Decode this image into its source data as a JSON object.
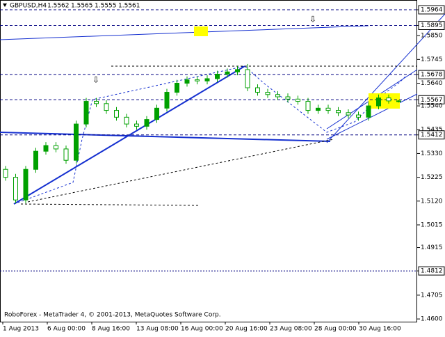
{
  "chart_data": {
    "type": "candlestick",
    "symbol": "GBPUSD,H4",
    "footer": "RoboForex - MetaTrader 4, © 2001-2013, MetaQuotes Software Corp.",
    "x_labels": [
      "1 Aug 2013",
      "6 Aug 00:00",
      "8 Aug 16:00",
      "13 Aug 08:00",
      "16 Aug 00:00",
      "20 Aug 16:00",
      "23 Aug 08:00",
      "28 Aug 00:00",
      "30 Aug 16:00"
    ],
    "up_color": "#00a000",
    "down_color": "#ffffff",
    "level_color": "#000080",
    "ylim": [
      1.4588,
      1.6004
    ],
    "yticks": [
      {
        "value": 1.5964,
        "label": "1.5964",
        "boxed": true
      },
      {
        "value": 1.5895,
        "label": "1.5895",
        "boxed": true
      },
      {
        "value": 1.585,
        "label": "1.5850"
      },
      {
        "value": 1.5745,
        "label": "1.5745"
      },
      {
        "value": 1.5678,
        "label": "1.5678",
        "boxed": true
      },
      {
        "value": 1.564,
        "label": "1.5640"
      },
      {
        "value": 1.5567,
        "label": "1.5567",
        "boxed": true
      },
      {
        "value": 1.554,
        "label": "1.5540"
      },
      {
        "value": 1.5435,
        "label": "1.5435"
      },
      {
        "value": 1.5412,
        "label": "1.5412",
        "boxed": true
      },
      {
        "value": 1.533,
        "label": "1.5330"
      },
      {
        "value": 1.5225,
        "label": "1.5225"
      },
      {
        "value": 1.512,
        "label": "1.5120"
      },
      {
        "value": 1.5015,
        "label": "1.5015"
      },
      {
        "value": 1.4915,
        "label": "1.4915"
      },
      {
        "value": 1.4812,
        "label": "1.4812",
        "boxed": true
      },
      {
        "value": 1.4705,
        "label": "1.4705"
      },
      {
        "value": 1.46,
        "label": "1.4600"
      }
    ],
    "open": [
      1.526,
      1.5225,
      1.5125,
      1.526,
      1.534,
      1.5365,
      1.535,
      1.53,
      1.546,
      1.556,
      1.555,
      1.552,
      1.549,
      1.546,
      1.545,
      1.548,
      1.553,
      1.56,
      1.564,
      1.5655,
      1.565,
      1.566,
      1.568,
      1.569,
      1.57,
      1.562,
      1.56,
      1.559,
      1.558,
      1.557,
      1.556,
      1.552,
      1.553,
      1.552,
      1.551,
      1.55,
      1.549,
      1.554,
      1.5575,
      1.5562
    ],
    "high": [
      1.5275,
      1.524,
      1.5275,
      1.5355,
      1.538,
      1.538,
      1.5365,
      1.5475,
      1.5575,
      1.5575,
      1.5565,
      1.5535,
      1.5505,
      1.5475,
      1.5495,
      1.5545,
      1.5615,
      1.5655,
      1.567,
      1.567,
      1.5675,
      1.5695,
      1.5705,
      1.5715,
      1.5725,
      1.5635,
      1.5615,
      1.5605,
      1.5595,
      1.5585,
      1.5575,
      1.5545,
      1.5545,
      1.5535,
      1.5525,
      1.5515,
      1.5555,
      1.559,
      1.559,
      1.5565
    ],
    "low": [
      1.521,
      1.511,
      1.511,
      1.5245,
      1.5325,
      1.5335,
      1.5285,
      1.5285,
      1.5445,
      1.5535,
      1.5505,
      1.5475,
      1.5445,
      1.5435,
      1.5435,
      1.5465,
      1.5515,
      1.5585,
      1.5625,
      1.5635,
      1.5635,
      1.5645,
      1.5665,
      1.5675,
      1.5605,
      1.5585,
      1.5575,
      1.5565,
      1.5555,
      1.5545,
      1.5505,
      1.5505,
      1.5505,
      1.5495,
      1.5485,
      1.5475,
      1.5475,
      1.5525,
      1.555,
      1.5555
    ],
    "close": [
      1.5225,
      1.5125,
      1.526,
      1.534,
      1.5365,
      1.535,
      1.53,
      1.546,
      1.556,
      1.555,
      1.552,
      1.549,
      1.546,
      1.545,
      1.548,
      1.553,
      1.56,
      1.564,
      1.5655,
      1.565,
      1.566,
      1.568,
      1.569,
      1.57,
      1.562,
      1.56,
      1.559,
      1.558,
      1.557,
      1.556,
      1.552,
      1.553,
      1.552,
      1.551,
      1.55,
      1.549,
      1.554,
      1.5575,
      1.5562,
      1.5561
    ]
  }
}
